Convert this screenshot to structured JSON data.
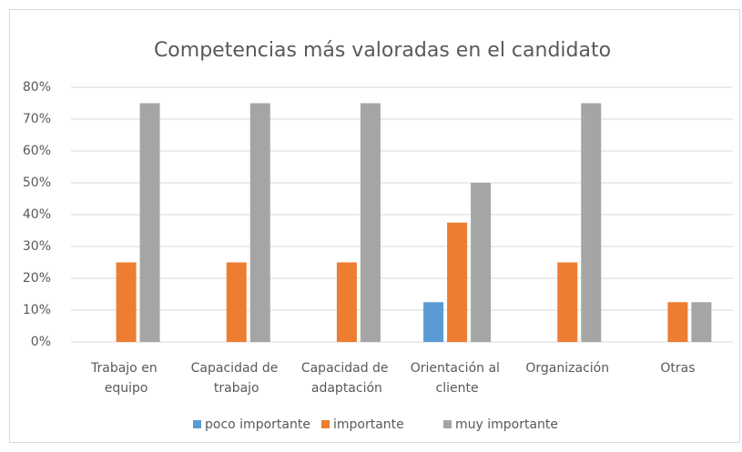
{
  "chart_data": {
    "type": "bar",
    "title": "Competencias más valoradas en el candidato",
    "categories": [
      "Trabajo en equipo",
      "Capacidad de trabajo",
      "Capacidad de adaptación",
      "Orientación al cliente",
      "Organización",
      "Otras"
    ],
    "series": [
      {
        "name": "poco importante",
        "color": "#5b9bd5",
        "values": [
          0,
          0,
          0,
          12.5,
          0,
          0
        ]
      },
      {
        "name": "importante",
        "color": "#ed7d31",
        "values": [
          25,
          25,
          25,
          37.5,
          25,
          12.5
        ]
      },
      {
        "name": "muy importante",
        "color": "#a5a5a5",
        "values": [
          75,
          75,
          75,
          50,
          75,
          12.5
        ]
      }
    ],
    "ylim": [
      0,
      80
    ],
    "yticks": [
      {
        "value": 0,
        "label": "0%"
      },
      {
        "value": 10,
        "label": "10%"
      },
      {
        "value": 20,
        "label": "20%"
      },
      {
        "value": 30,
        "label": "30%"
      },
      {
        "value": 40,
        "label": "40%"
      },
      {
        "value": 50,
        "label": "50%"
      },
      {
        "value": 60,
        "label": "60%"
      },
      {
        "value": 70,
        "label": "70%"
      },
      {
        "value": 80,
        "label": "80%"
      }
    ],
    "grid": true,
    "legend": "bottom"
  }
}
